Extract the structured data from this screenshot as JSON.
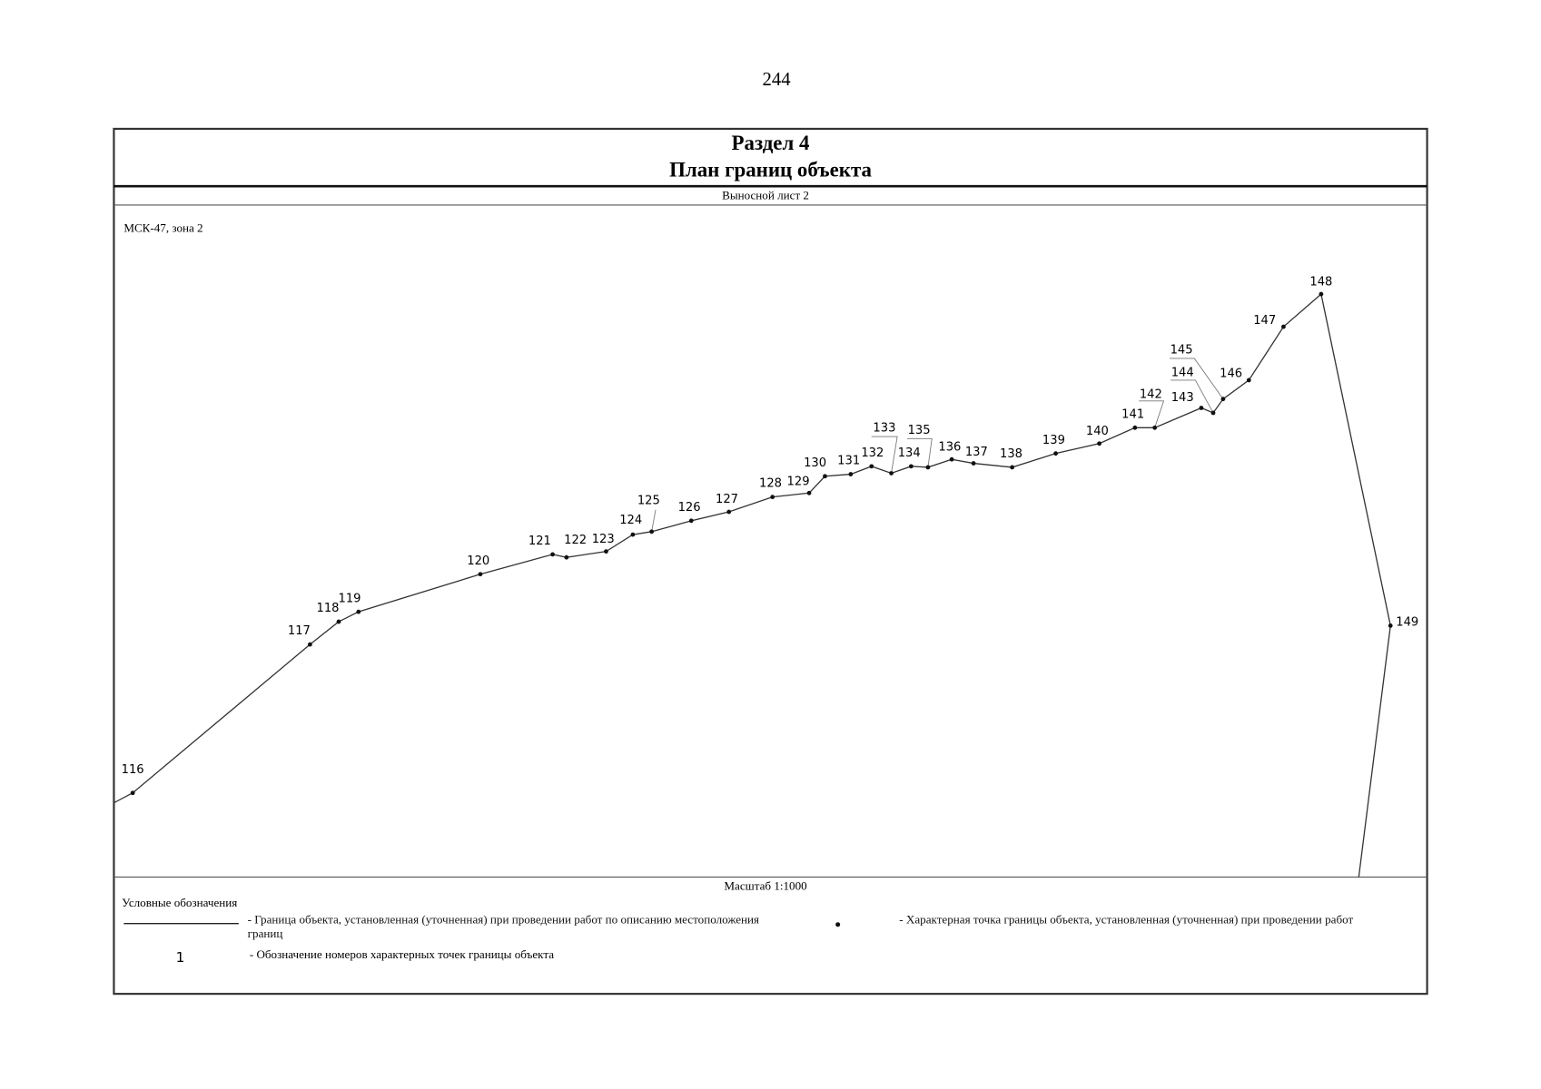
{
  "page_number": "244",
  "header": {
    "section": "Раздел 4",
    "title": "План границ объекта"
  },
  "sheet": "Выносной лист 2",
  "coordinate_system": "МСК-47, зона 2",
  "points": [
    "116",
    "117",
    "118",
    "119",
    "120",
    "121",
    "122",
    "123",
    "124",
    "125",
    "126",
    "127",
    "128",
    "129",
    "130",
    "131",
    "132",
    "133",
    "134",
    "135",
    "136",
    "137",
    "138",
    "139",
    "140",
    "141",
    "142",
    "143",
    "144",
    "145",
    "146",
    "147",
    "148",
    "149"
  ],
  "scale": "Масштаб 1:1000",
  "legend": {
    "title": "Условные обозначения",
    "boundary": "- Граница  объекта, установленная (уточненная) при проведении работ по описанию местоположения границ",
    "point": "- Характерная точка границы объекта, установленная (уточненная) при проведении работ",
    "numbering_symbol": "1",
    "numbering": "- Обозначение номеров характерных точек границы объекта"
  }
}
